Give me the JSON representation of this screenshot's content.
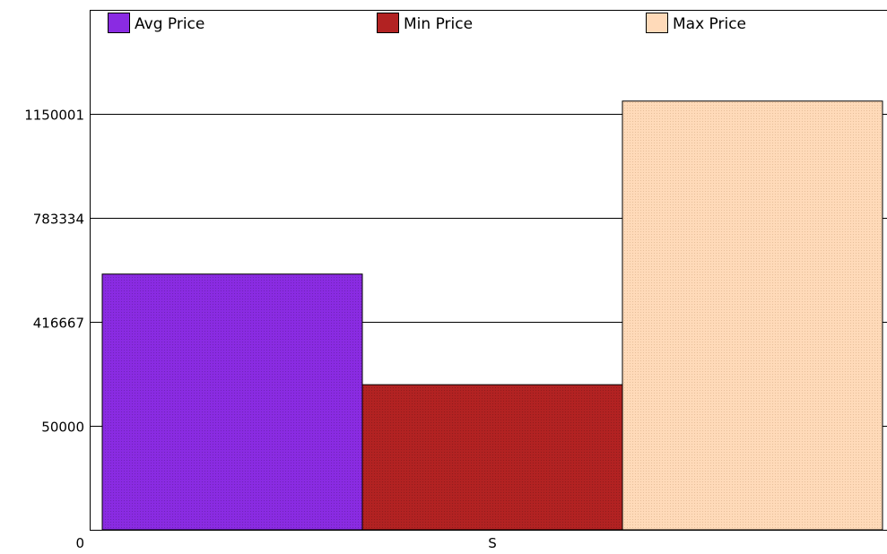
{
  "chart_data": {
    "type": "bar",
    "title": "",
    "xlabel": "",
    "ylabel": "",
    "categories": [
      "S"
    ],
    "series": [
      {
        "name": "Avg Price",
        "color": "#8a2be2",
        "values": [
          585000
        ]
      },
      {
        "name": "Min Price",
        "color": "#b22222",
        "values": [
          195000
        ]
      },
      {
        "name": "Max Price",
        "color": "#ffdab9",
        "values": [
          1195000
        ]
      }
    ],
    "y_tick_labels": [
      "0",
      "50000",
      "416667",
      "783334",
      "1150001"
    ],
    "ylim": [
      -316667,
      1516668
    ],
    "grid": true,
    "legend_position": "top"
  }
}
